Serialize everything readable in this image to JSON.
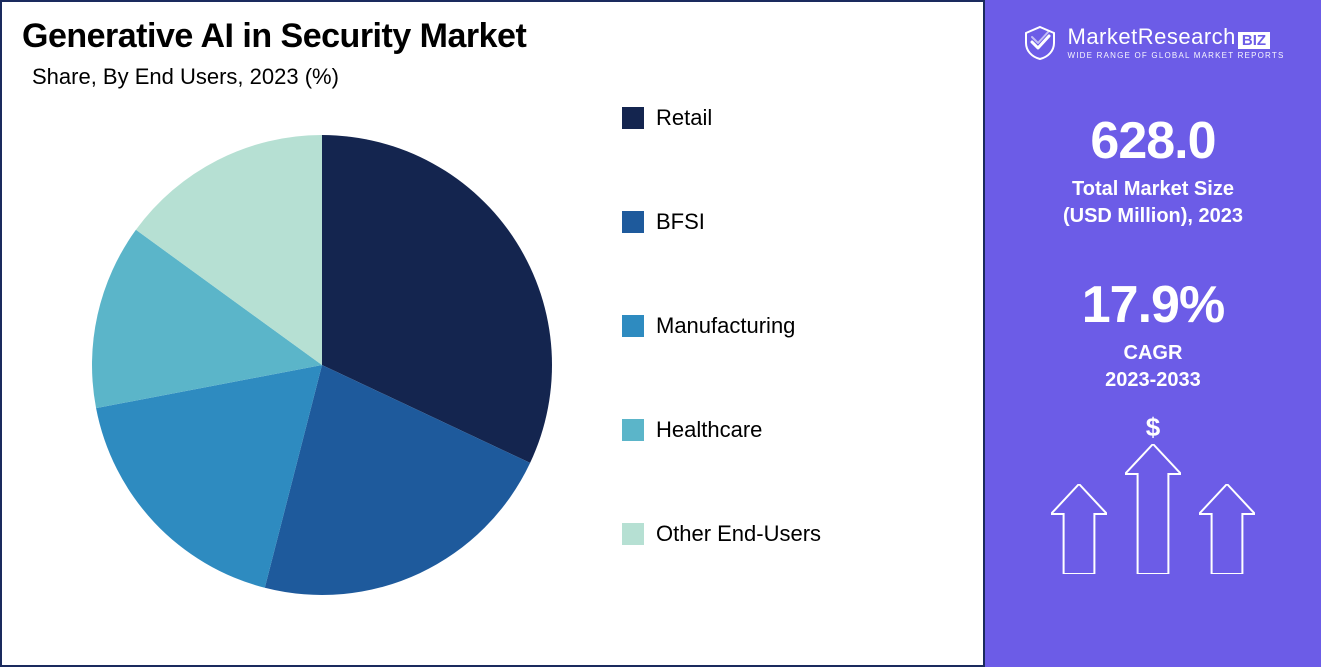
{
  "chart": {
    "type": "pie",
    "title": "Generative AI in Security Market",
    "subtitle": "Share, By End Users, 2023 (%)",
    "background_color": "#ffffff",
    "border_color": "#1a2a5e",
    "title_fontsize": 34,
    "subtitle_fontsize": 22,
    "pie_radius": 230,
    "slices": [
      {
        "label": "Retail",
        "value": 32,
        "color": "#14254f"
      },
      {
        "label": "BFSI",
        "value": 22,
        "color": "#1e5a9c"
      },
      {
        "label": "Manufacturing",
        "value": 18,
        "color": "#2e8bc0"
      },
      {
        "label": "Healthcare",
        "value": 13,
        "color": "#5bb5c9"
      },
      {
        "label": "Other End-Users",
        "value": 15,
        "color": "#b6e0d3"
      }
    ],
    "legend": {
      "fontsize": 22,
      "swatch_size": 22,
      "gap": 78
    }
  },
  "side_panel": {
    "background_color": "#6c5ce7",
    "text_color": "#ffffff",
    "brand": {
      "name_prefix": "MarketResearch",
      "name_suffix": "BIZ",
      "tagline": "WIDE RANGE OF GLOBAL MARKET REPORTS"
    },
    "stat1": {
      "value": "628.0",
      "label_line1": "Total Market Size",
      "label_line2": "(USD Million), 2023",
      "value_fontsize": 52,
      "label_fontsize": 20
    },
    "stat2": {
      "value": "17.9%",
      "label_line1": "CAGR",
      "label_line2": "2023-2033",
      "value_fontsize": 52,
      "label_fontsize": 20
    },
    "arrows": {
      "stroke_color": "#ffffff",
      "stroke_width": 2,
      "heights": [
        90,
        130,
        90
      ],
      "width": 56,
      "dollar_symbol": "$"
    }
  }
}
